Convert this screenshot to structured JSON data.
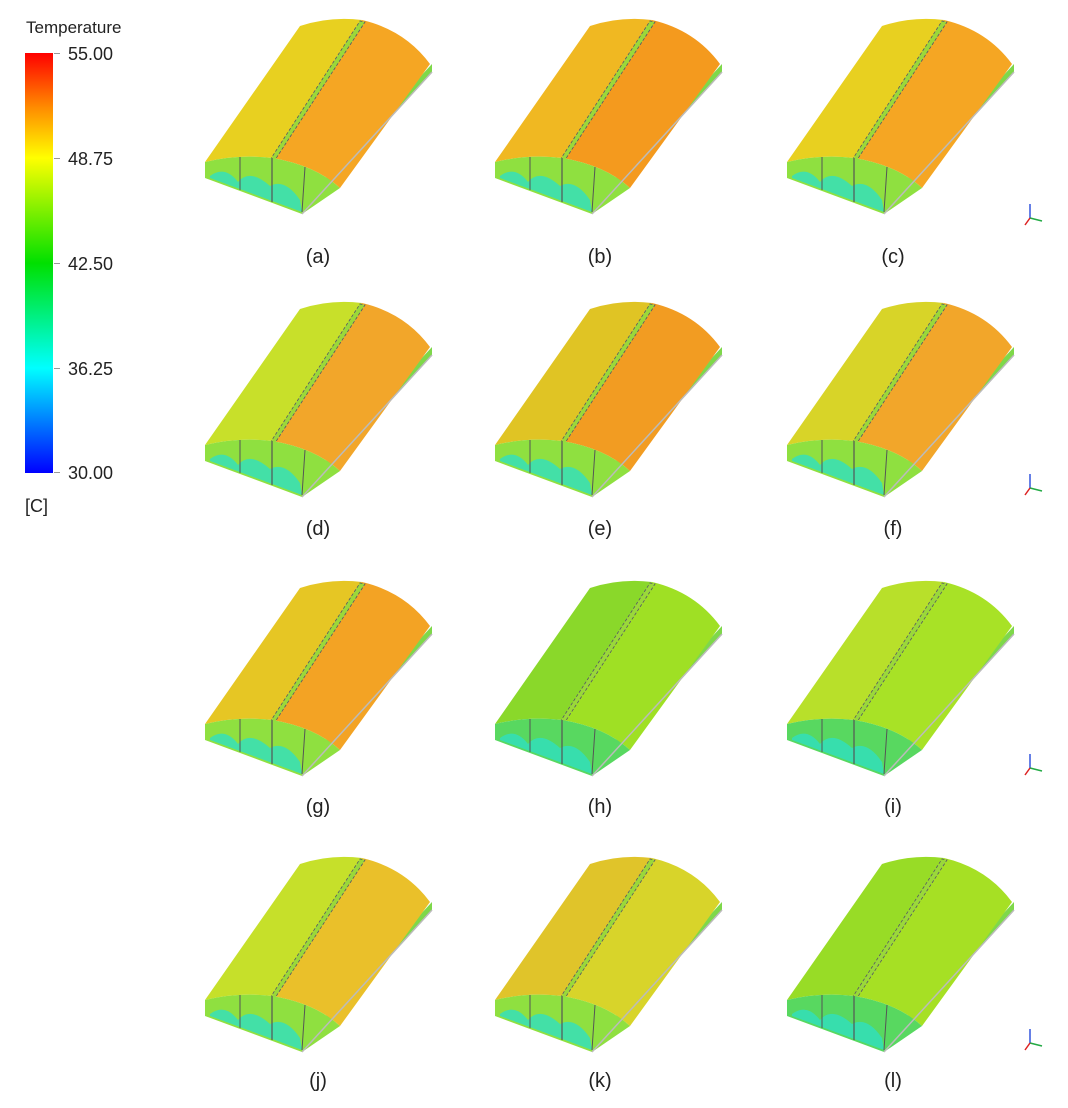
{
  "legend": {
    "title": "Temperature",
    "unit": "[C]",
    "ticks": [
      "55.00",
      "48.75",
      "42.50",
      "36.25",
      "30.00"
    ],
    "range": [
      30.0,
      55.0
    ],
    "colormap": [
      "#ff0000",
      "#ff8c00",
      "#ffff00",
      "#00e000",
      "#00ffff",
      "#0000ff"
    ]
  },
  "panels": [
    {
      "label": "(a)",
      "roof_color": "#f5a623",
      "left_color": "#e8d020"
    },
    {
      "label": "(b)",
      "roof_color": "#f49a1e",
      "left_color": "#f0b822"
    },
    {
      "label": "(c)",
      "roof_color": "#f5a623",
      "left_color": "#e8d020"
    },
    {
      "label": "(d)",
      "roof_color": "#f2a62a",
      "left_color": "#c8e02a"
    },
    {
      "label": "(e)",
      "roof_color": "#f29c22",
      "left_color": "#e0c424"
    },
    {
      "label": "(f)",
      "roof_color": "#f2a62a",
      "left_color": "#d8d428"
    },
    {
      "label": "(g)",
      "roof_color": "#f3a324",
      "left_color": "#e6c624"
    },
    {
      "label": "(h)",
      "roof_color": "#9fe024",
      "left_color": "#8ad82a"
    },
    {
      "label": "(i)",
      "roof_color": "#a8e226",
      "left_color": "#b8e02a"
    },
    {
      "label": "(j)",
      "roof_color": "#eac02a",
      "left_color": "#c6e02a"
    },
    {
      "label": "(k)",
      "roof_color": "#d8d42a",
      "left_color": "#e0c42a"
    },
    {
      "label": "(l)",
      "roof_color": "#a6e024",
      "left_color": "#98dc26"
    }
  ]
}
